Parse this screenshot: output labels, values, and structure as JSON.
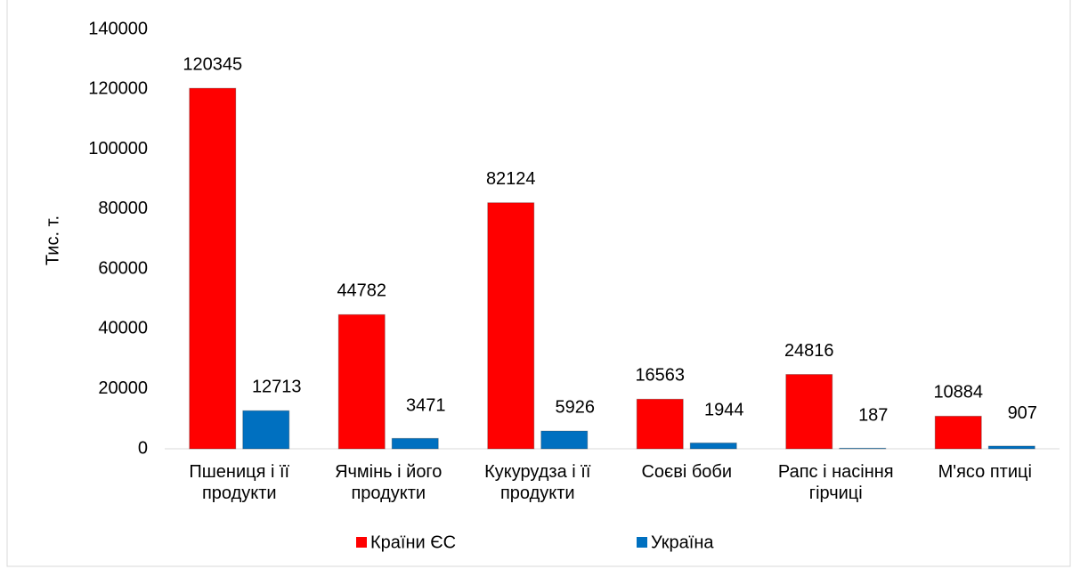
{
  "chart_data": {
    "type": "bar",
    "y_label": "Тис. т.",
    "categories": [
      "Пшениця і її продукти",
      "Ячмінь і його продукти",
      "Кукурудза і її продукти",
      "Соєві боби",
      "Рапс і насіння гірчиці",
      "М'ясо птиці"
    ],
    "series": [
      {
        "name": "Країни ЄС",
        "color": "#ff0000",
        "values": [
          120345,
          44782,
          82124,
          16563,
          24816,
          10884
        ]
      },
      {
        "name": "Україна",
        "color": "#0070c0",
        "values": [
          12713,
          3471,
          5926,
          1944,
          187,
          907
        ]
      }
    ],
    "ylim": [
      0,
      140000
    ],
    "yticks": [
      0,
      20000,
      40000,
      60000,
      80000,
      100000,
      120000,
      140000
    ],
    "grid": false,
    "legend": "bottom"
  }
}
